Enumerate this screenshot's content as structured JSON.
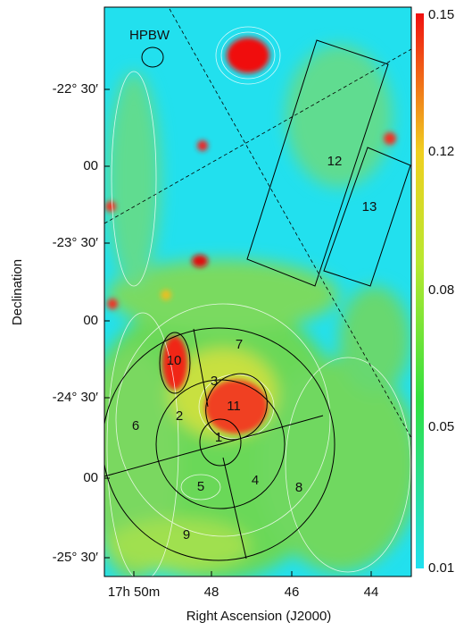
{
  "map": {
    "beam_label": "HPBW",
    "y_axis": {
      "title": "Declination",
      "ticks": [
        "-22° 30′",
        "00",
        "-23° 30′",
        "00",
        "-24° 30′",
        "00",
        "-25° 30′"
      ]
    },
    "x_axis": {
      "title": "Right Ascension (J2000)",
      "ticks": [
        "17h 50m",
        "48",
        "46",
        "44"
      ]
    },
    "colorbar": {
      "ticks": [
        "0.15",
        "0.12",
        "0.08",
        "0.05",
        "0.01"
      ]
    },
    "regions": [
      "1",
      "2",
      "3",
      "4",
      "5",
      "6",
      "7",
      "8",
      "9",
      "10",
      "11",
      "12",
      "13"
    ]
  }
}
